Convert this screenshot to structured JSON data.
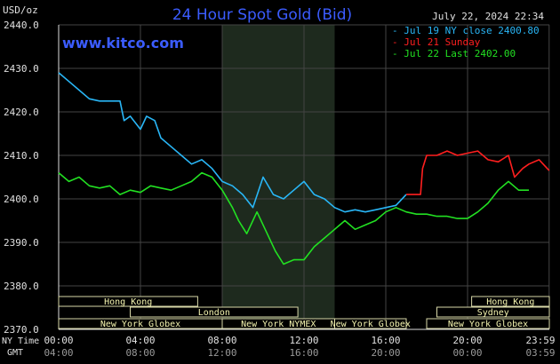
{
  "chart_data": {
    "type": "line",
    "title": "24 Hour Spot Gold (Bid)",
    "site": "www.kitco.com",
    "timestamp": "July 22, 2024 22:34",
    "ylabel": "USD/oz",
    "ylim": [
      2370,
      2440
    ],
    "yticks": [
      "2440.0",
      "2430.0",
      "2420.0",
      "2410.0",
      "2400.0",
      "2390.0",
      "2380.0",
      "2370.0"
    ],
    "xlim": [
      0,
      24
    ],
    "xticks_ny": [
      "00:00",
      "04:00",
      "08:00",
      "12:00",
      "16:00",
      "20:00",
      "23:59"
    ],
    "xticks_gmt": [
      "04:00",
      "08:00",
      "12:00",
      "16:00",
      "20:00",
      "00:00",
      "03:59"
    ],
    "xlabel_ny": "NY Time",
    "xlabel_gmt": "GMT",
    "legend": [
      {
        "label": "Jul 19 NY close 2400.80",
        "color": "#29b6f6"
      },
      {
        "label": "Jul 21 Sunday",
        "color": "#ff1f1f"
      },
      {
        "label": "Jul 22 Last 2402.00",
        "color": "#22e022"
      }
    ],
    "highlight_band": [
      8.0,
      13.5
    ],
    "series": [
      {
        "name": "Jul 19 NY close 2400.80",
        "color": "#29b6f6",
        "x": [
          0,
          0.5,
          1.0,
          1.5,
          2.0,
          2.5,
          3.0,
          3.2,
          3.5,
          4.0,
          4.3,
          4.7,
          5.0,
          5.5,
          6.0,
          6.5,
          7.0,
          7.5,
          8.0,
          8.5,
          9.0,
          9.5,
          10.0,
          10.5,
          11.0,
          11.5,
          12.0,
          12.5,
          13.0,
          13.5,
          14.0,
          14.5,
          15.0,
          15.5,
          16.0,
          16.5,
          17.0
        ],
        "y": [
          2429,
          2427,
          2425,
          2423,
          2422.5,
          2422.5,
          2422.5,
          2418,
          2419,
          2416,
          2419,
          2418,
          2414,
          2412,
          2410,
          2408,
          2409,
          2407,
          2404,
          2403,
          2401,
          2398,
          2405,
          2401,
          2400,
          2402,
          2404,
          2401,
          2400,
          2398,
          2397,
          2397.5,
          2397,
          2397.5,
          2398,
          2398.5,
          2401
        ]
      },
      {
        "name": "Jul 21 Sunday",
        "color": "#ff1f1f",
        "x": [
          17.0,
          17.7,
          17.8,
          18.0,
          18.5,
          19.0,
          19.5,
          20.0,
          20.5,
          21.0,
          21.5,
          22.0,
          22.3,
          22.7,
          23.0,
          23.5,
          23.99
        ],
        "y": [
          2401,
          2401,
          2407,
          2410,
          2410,
          2411,
          2410,
          2410.5,
          2411,
          2409,
          2408.5,
          2410,
          2405,
          2407,
          2408,
          2409,
          2406.5
        ]
      },
      {
        "name": "Jul 22 Last 2402.00",
        "color": "#22e022",
        "x": [
          0,
          0.5,
          1.0,
          1.5,
          2.0,
          2.5,
          3.0,
          3.5,
          4.0,
          4.5,
          5.0,
          5.5,
          6.0,
          6.5,
          7.0,
          7.5,
          8.0,
          8.5,
          8.8,
          9.2,
          9.7,
          10.2,
          10.6,
          11.0,
          11.5,
          12.0,
          12.5,
          13.0,
          13.5,
          14.0,
          14.5,
          15.0,
          15.5,
          16.0,
          16.5,
          17.0,
          17.5,
          18.0,
          18.5,
          19.0,
          19.5,
          20.0,
          20.5,
          21.0,
          21.5,
          22.0,
          22.5,
          23.0
        ],
        "y": [
          2406,
          2404,
          2405,
          2403,
          2402.5,
          2403,
          2401,
          2402,
          2401.5,
          2403,
          2402.5,
          2402,
          2403,
          2404,
          2406,
          2405,
          2402,
          2398,
          2395,
          2392,
          2397,
          2392,
          2388,
          2385,
          2386,
          2386,
          2389,
          2391,
          2393,
          2395,
          2393,
          2394,
          2395,
          2397,
          2398,
          2397,
          2396.5,
          2396.5,
          2396,
          2396,
          2395.5,
          2395.5,
          2397,
          2399,
          2402,
          2404,
          2402,
          2402
        ]
      }
    ]
  },
  "sessions": [
    {
      "label": "Hong Kong",
      "start": 0,
      "end": 6.8,
      "row": 0
    },
    {
      "label": "Hong Kong",
      "start": 20.2,
      "end": 24,
      "row": 0
    },
    {
      "label": "London",
      "start": 3.5,
      "end": 11.7,
      "row": 1
    },
    {
      "label": "Sydney",
      "start": 18.5,
      "end": 24,
      "row": 1
    },
    {
      "label": "New York Globex",
      "start": 0,
      "end": 8.0,
      "row": 2
    },
    {
      "label": "New York NYMEX",
      "start": 8.0,
      "end": 13.5,
      "row": 2
    },
    {
      "label": "New York Globex",
      "start": 13.5,
      "end": 17.0,
      "row": 2
    },
    {
      "label": "New York Globex",
      "start": 18.0,
      "end": 24,
      "row": 2
    }
  ]
}
